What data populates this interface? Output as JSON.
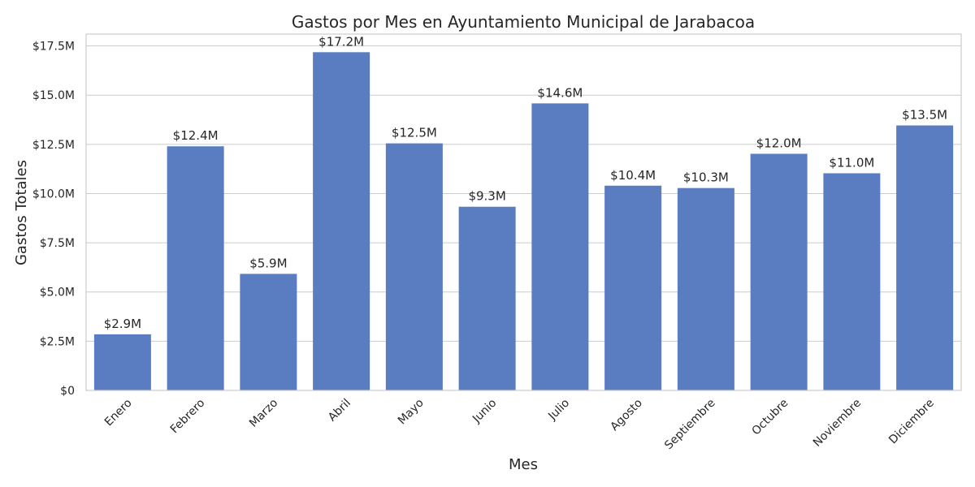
{
  "chart_data": {
    "type": "bar",
    "title": "Gastos por Mes en Ayuntamiento Municipal de Jarabacoa",
    "xlabel": "Mes",
    "ylabel": "Gastos Totales",
    "categories": [
      "Enero",
      "Febrero",
      "Marzo",
      "Abril",
      "Mayo",
      "Junio",
      "Julio",
      "Agosto",
      "Septiembre",
      "Octubre",
      "Noviembre",
      "Diciembre"
    ],
    "values": [
      2850000,
      12400000,
      5920000,
      17180000,
      12550000,
      9330000,
      14580000,
      10400000,
      10280000,
      12020000,
      11030000,
      13460000
    ],
    "data_labels": [
      "$2.9M",
      "$12.4M",
      "$5.9M",
      "$17.2M",
      "$12.5M",
      "$9.3M",
      "$14.6M",
      "$10.4M",
      "$10.3M",
      "$12.0M",
      "$11.0M",
      "$13.5M"
    ],
    "ylim": [
      0,
      18100000
    ],
    "yticks": [
      0,
      2500000,
      5000000,
      7500000,
      10000000,
      12500000,
      15000000,
      17500000
    ],
    "ytick_labels": [
      "$0",
      "$2.5M",
      "$5.0M",
      "$7.5M",
      "$10.0M",
      "$12.5M",
      "$15.0M",
      "$17.5M"
    ],
    "grid": true,
    "bar_color": "#5a7dc2"
  }
}
